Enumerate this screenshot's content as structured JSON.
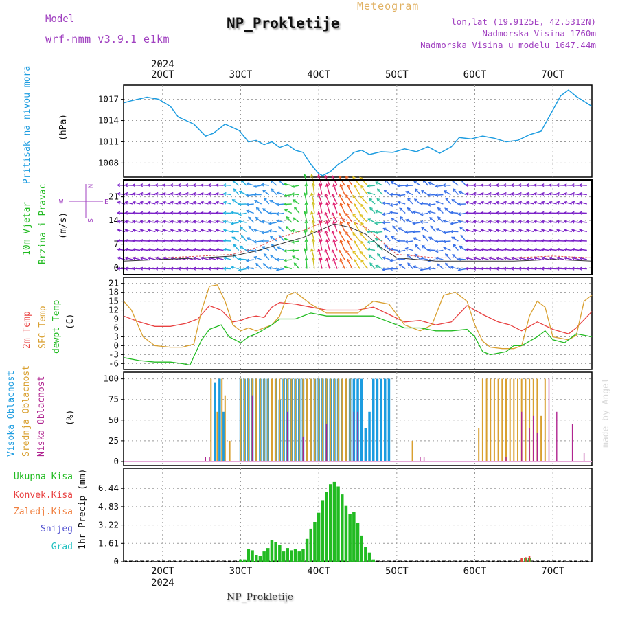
{
  "header": {
    "model_label": "Model",
    "model_name": "wrf-nmm_v3.9.1 e1km",
    "title": "NP_Prokletije",
    "subtitle": "Meteogram",
    "info_lines": [
      "lon,lat (19.9125E, 42.5312N)",
      "Nadmorska Visina 1760m",
      "Nadmorska Visina u modelu 1647.44m"
    ],
    "credit": "made by Angel",
    "footer": "NP_Prokletije",
    "year": "2024"
  },
  "colors": {
    "pressure": "#1c9ce0",
    "wind_speed": "#333333",
    "wind_gust": "#e05050",
    "temp_2m": "#e84040",
    "temp_sfc": "#d9a030",
    "dewpoint": "#22bb22",
    "cloud_high": "#1c9ce0",
    "cloud_mid": "#d9a030",
    "cloud_low": "#b02590",
    "rain_total": "#22bb22",
    "rain_conv": "#e84040",
    "freezing_rain": "#f08040",
    "snow": "#5050d0",
    "hail": "#20c0c0",
    "label_violet": "#a040c0"
  },
  "chart_data": [
    {
      "type": "line",
      "panel": "pressure",
      "ylabel": [
        "Pritisak na nivou mora",
        "(hPa)"
      ],
      "x_ticks": [
        "2OCT",
        "3OCT",
        "4OCT",
        "5OCT",
        "6OCT",
        "7OCT"
      ],
      "y_ticks": [
        1008,
        1011,
        1014,
        1017
      ],
      "ylim": [
        1006,
        1019
      ],
      "xlim": [
        1.5,
        7.5
      ],
      "grid": true,
      "series": [
        {
          "x": [
            1.5,
            1.6,
            1.8,
            1.95,
            2.1,
            2.2,
            2.4,
            2.55,
            2.65,
            2.8,
            2.9,
            2.98,
            3.1,
            3.2,
            3.3,
            3.4,
            3.5,
            3.6,
            3.7,
            3.8,
            3.9,
            4.0,
            4.05,
            4.15,
            4.25,
            4.35,
            4.45,
            4.55,
            4.65,
            4.8,
            4.95,
            5.1,
            5.25,
            5.4,
            5.55,
            5.7,
            5.8,
            5.95,
            6.1,
            6.25,
            6.4,
            6.55,
            6.7,
            6.85,
            7.0,
            7.1,
            7.2,
            7.3,
            7.5
          ],
          "values": [
            1016.5,
            1016.8,
            1017.3,
            1017.0,
            1016.0,
            1014.5,
            1013.5,
            1011.8,
            1012.2,
            1013.5,
            1013.0,
            1012.6,
            1011.0,
            1011.2,
            1010.6,
            1011.0,
            1010.2,
            1010.6,
            1009.8,
            1009.5,
            1007.8,
            1006.5,
            1006.2,
            1006.8,
            1007.8,
            1008.5,
            1009.5,
            1009.8,
            1009.2,
            1009.6,
            1009.5,
            1010.0,
            1009.6,
            1010.3,
            1009.4,
            1010.3,
            1011.6,
            1011.4,
            1011.8,
            1011.5,
            1011.0,
            1011.2,
            1012.0,
            1012.5,
            1015.5,
            1017.5,
            1018.3,
            1017.4,
            1016.0
          ]
        }
      ]
    },
    {
      "type": "line",
      "panel": "wind",
      "ylabel": [
        "10m Vjetar",
        "Brzina i Pravac",
        "(m/s)"
      ],
      "compass": [
        "N",
        "S",
        "W",
        "E"
      ],
      "y_ticks": [
        0,
        7,
        14,
        21
      ],
      "ylim": [
        -2,
        26
      ],
      "xlim": [
        1.5,
        7.5
      ],
      "grid": true,
      "series": [
        {
          "x": [
            1.5,
            2.0,
            2.5,
            2.9,
            3.2,
            3.5,
            3.8,
            4.0,
            4.2,
            4.4,
            4.6,
            4.8,
            5.0,
            5.5,
            6.0,
            6.5,
            7.0,
            7.5
          ],
          "values": [
            2,
            2.5,
            3,
            3.5,
            5,
            7,
            9,
            11,
            13,
            12,
            10,
            6,
            3,
            2,
            2,
            2,
            2.5,
            2
          ]
        },
        {
          "x": [
            1.5,
            2.0,
            2.5,
            2.9,
            3.2,
            3.5,
            3.8,
            4.0,
            4.2,
            4.4,
            4.6,
            4.8,
            5.0,
            5.5,
            6.0,
            6.5,
            7.0,
            7.5
          ],
          "values": [
            3,
            3,
            3.5,
            4,
            6,
            9,
            11,
            13,
            15,
            14,
            12,
            8,
            4,
            3,
            3,
            3,
            3.5,
            3
          ]
        }
      ]
    },
    {
      "type": "line",
      "panel": "temperature",
      "ylabel": [
        "2m Temp",
        "SFC Temp",
        "dewpt Temp",
        "(C)"
      ],
      "y_ticks": [
        -6,
        -3,
        0,
        3,
        6,
        9,
        12,
        15,
        18,
        21
      ],
      "ylim": [
        -8,
        23
      ],
      "xlim": [
        1.5,
        7.5
      ],
      "grid": true,
      "series": [
        {
          "name": "2m Temp",
          "x": [
            1.5,
            1.7,
            1.9,
            2.1,
            2.3,
            2.45,
            2.6,
            2.75,
            2.9,
            3.0,
            3.1,
            3.2,
            3.3,
            3.4,
            3.5,
            3.7,
            3.9,
            4.1,
            4.3,
            4.5,
            4.7,
            4.9,
            5.1,
            5.3,
            5.5,
            5.7,
            5.9,
            6.1,
            6.3,
            6.45,
            6.6,
            6.8,
            7.0,
            7.2,
            7.3,
            7.5
          ],
          "values": [
            10,
            8,
            6.5,
            6.5,
            7.5,
            9,
            13.5,
            12,
            8,
            8.5,
            9.5,
            10,
            9.5,
            13,
            14.5,
            14,
            13,
            12,
            12,
            12,
            13,
            10.5,
            8,
            8.5,
            7,
            8,
            13.5,
            10.5,
            8,
            7,
            5,
            8,
            5.5,
            4,
            6,
            11.5
          ]
        },
        {
          "name": "SFC Temp",
          "x": [
            1.5,
            1.6,
            1.75,
            1.9,
            2.1,
            2.25,
            2.4,
            2.5,
            2.6,
            2.7,
            2.8,
            2.9,
            3.0,
            3.1,
            3.2,
            3.3,
            3.4,
            3.5,
            3.6,
            3.7,
            3.9,
            4.1,
            4.3,
            4.5,
            4.7,
            4.9,
            5.1,
            5.3,
            5.45,
            5.6,
            5.75,
            5.9,
            6.0,
            6.1,
            6.2,
            6.35,
            6.5,
            6.6,
            6.7,
            6.8,
            6.9,
            7.0,
            7.1,
            7.2,
            7.3,
            7.4,
            7.5
          ],
          "values": [
            15,
            12,
            3,
            0,
            -0.5,
            -0.5,
            0.5,
            12,
            20,
            20.5,
            15,
            7,
            5,
            6,
            5,
            6,
            7,
            10,
            17,
            18,
            14,
            11,
            11,
            11,
            15,
            14,
            7,
            5,
            7,
            17,
            18,
            15,
            7,
            1.5,
            -0.5,
            -1,
            -1,
            0,
            10,
            15,
            13,
            3,
            2.5,
            2,
            3.5,
            15,
            17
          ]
        },
        {
          "name": "dewpt Temp",
          "x": [
            1.5,
            1.7,
            1.9,
            2.1,
            2.25,
            2.35,
            2.5,
            2.6,
            2.75,
            2.85,
            3.0,
            3.1,
            3.2,
            3.4,
            3.5,
            3.7,
            3.9,
            4.1,
            4.3,
            4.5,
            4.7,
            4.9,
            5.1,
            5.3,
            5.5,
            5.7,
            5.9,
            6.0,
            6.1,
            6.2,
            6.4,
            6.5,
            6.6,
            6.8,
            6.9,
            7.0,
            7.15,
            7.3,
            7.5
          ],
          "values": [
            -4,
            -5,
            -5.5,
            -5.5,
            -6,
            -6.5,
            2,
            5.5,
            7,
            3,
            1,
            3,
            4,
            7,
            9,
            9,
            11,
            10,
            10,
            10,
            10,
            8,
            6,
            6,
            5,
            5,
            5.5,
            3,
            -2,
            -3,
            -2,
            0,
            0,
            3,
            5,
            2,
            1,
            4,
            3
          ]
        }
      ]
    },
    {
      "type": "bar",
      "panel": "cloud",
      "ylabel": [
        "Visoka Oblacnost",
        "Srednja Oblacnost",
        "Niska Oblacnost",
        "(%)"
      ],
      "y_ticks": [
        0,
        25,
        50,
        75,
        100
      ],
      "ylim": [
        -5,
        108
      ],
      "xlim": [
        1.5,
        7.5
      ],
      "grid": true,
      "series": [
        {
          "name": "Visoka Oblacnost",
          "x": [
            2.67,
            2.73,
            2.78,
            3.0,
            3.05,
            3.1,
            3.15,
            3.2,
            3.25,
            3.3,
            3.35,
            3.4,
            3.45,
            3.5,
            3.55,
            3.6,
            3.65,
            3.7,
            3.75,
            3.8,
            3.85,
            3.9,
            3.95,
            4.0,
            4.05,
            4.1,
            4.15,
            4.2,
            4.25,
            4.3,
            4.35,
            4.4,
            4.45,
            4.5,
            4.55,
            4.6,
            4.65,
            4.7,
            4.75,
            4.8,
            4.85,
            4.9
          ],
          "values": [
            95,
            100,
            60,
            100,
            100,
            100,
            100,
            100,
            100,
            100,
            100,
            100,
            100,
            75,
            100,
            100,
            100,
            100,
            100,
            100,
            100,
            100,
            100,
            100,
            100,
            100,
            100,
            100,
            100,
            100,
            100,
            100,
            100,
            100,
            100,
            40,
            60,
            100,
            100,
            100,
            100,
            100
          ]
        },
        {
          "name": "Srednja Oblacnost",
          "x": [
            2.62,
            2.7,
            2.76,
            2.8,
            2.86,
            3.0,
            3.05,
            3.1,
            3.15,
            3.2,
            3.25,
            3.3,
            3.35,
            3.4,
            3.45,
            3.5,
            3.55,
            3.6,
            3.65,
            3.7,
            3.75,
            3.8,
            3.85,
            3.9,
            3.95,
            4.0,
            4.05,
            4.1,
            4.15,
            4.2,
            4.25,
            4.3,
            4.35,
            4.4,
            5.2,
            6.05,
            6.1,
            6.15,
            6.2,
            6.25,
            6.3,
            6.35,
            6.4,
            6.45,
            6.5,
            6.55,
            6.6,
            6.65,
            6.7,
            6.75,
            6.8,
            6.85,
            6.9
          ],
          "values": [
            100,
            60,
            100,
            80,
            25,
            100,
            100,
            100,
            100,
            100,
            100,
            100,
            100,
            100,
            100,
            100,
            100,
            100,
            100,
            100,
            100,
            100,
            100,
            100,
            100,
            100,
            100,
            100,
            100,
            100,
            100,
            100,
            100,
            100,
            25,
            40,
            100,
            100,
            100,
            100,
            100,
            100,
            100,
            100,
            100,
            100,
            100,
            100,
            100,
            100,
            100,
            55,
            100
          ]
        },
        {
          "name": "Niska Oblacnost",
          "x": [
            2.55,
            2.6,
            3.15,
            3.6,
            3.8,
            4.1,
            4.45,
            4.5,
            5.3,
            5.35,
            6.4,
            6.6,
            6.7,
            6.75,
            6.8,
            6.95,
            7.05,
            7.25,
            7.4
          ],
          "values": [
            5,
            5,
            80,
            60,
            30,
            45,
            60,
            60,
            5,
            5,
            5,
            60,
            40,
            55,
            35,
            100,
            60,
            45,
            10
          ]
        }
      ]
    },
    {
      "type": "bar",
      "panel": "precip",
      "ylabel": [
        "Ukupna Kisa",
        "Konvek.Kisa",
        "Zaledj.Kisa",
        "Snijeg",
        "Grad",
        "1hr Precip (mm)"
      ],
      "y_ticks": [
        0,
        1.61,
        3.22,
        4.83,
        6.44
      ],
      "ylim": [
        0,
        8.2
      ],
      "xlim": [
        1.5,
        7.5
      ],
      "grid": true,
      "series": [
        {
          "name": "Ukupna Kisa",
          "x": [
            3.0,
            3.05,
            3.1,
            3.15,
            3.2,
            3.25,
            3.3,
            3.35,
            3.4,
            3.45,
            3.5,
            3.55,
            3.6,
            3.65,
            3.7,
            3.75,
            3.8,
            3.85,
            3.9,
            3.95,
            4.0,
            4.05,
            4.1,
            4.15,
            4.2,
            4.25,
            4.3,
            4.35,
            4.4,
            4.45,
            4.5,
            4.55,
            4.6,
            4.65,
            4.7,
            6.6,
            6.65,
            6.7
          ],
          "values": [
            0.2,
            0.2,
            1.1,
            1.0,
            0.6,
            0.5,
            0.9,
            1.2,
            1.9,
            1.7,
            1.5,
            0.9,
            1.2,
            1.0,
            1.1,
            0.9,
            1.1,
            2.0,
            2.9,
            3.5,
            4.3,
            5.4,
            6.1,
            6.8,
            7.0,
            6.6,
            5.9,
            4.9,
            4.2,
            4.4,
            3.4,
            2.3,
            1.3,
            0.8,
            0.2,
            0.2,
            0.3,
            0.3
          ]
        },
        {
          "name": "Konvek.Kisa",
          "x": [
            6.6,
            6.65,
            6.7
          ],
          "values": [
            0.3,
            0.4,
            0.5
          ]
        }
      ]
    }
  ]
}
